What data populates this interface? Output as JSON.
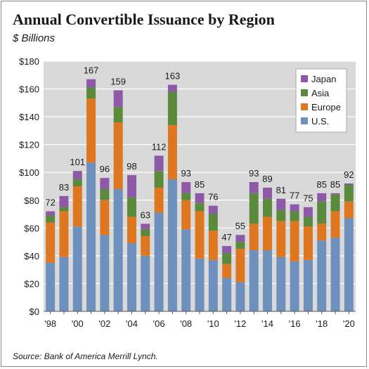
{
  "header": {
    "title": "Annual Convertible Issuance by Region",
    "subtitle": "$ Billions"
  },
  "footer": {
    "source": "Source: Bank of America Merrill Lynch."
  },
  "chart_data": {
    "type": "bar",
    "stacked": true,
    "title": "Annual Convertible Issuance by Region",
    "ylabel": "$ Billions",
    "xlabel": "",
    "ylim": [
      0,
      180
    ],
    "yticks": [
      0,
      20,
      40,
      60,
      80,
      100,
      120,
      140,
      160,
      180
    ],
    "ytick_labels": [
      "$0",
      "$20",
      "$40",
      "$60",
      "$80",
      "$100",
      "$120",
      "$140",
      "$160",
      "$180"
    ],
    "categories": [
      "1998",
      "1999",
      "2000",
      "2001",
      "2002",
      "2003",
      "2004",
      "2005",
      "2006",
      "2007",
      "2008",
      "2009",
      "2010",
      "2011",
      "2012",
      "2013",
      "2014",
      "2015",
      "2016",
      "2017",
      "2018",
      "2019",
      "2020"
    ],
    "xtick_labels": [
      "'98",
      "",
      "'00",
      "",
      "'02",
      "",
      "'04",
      "",
      "'06",
      "",
      "'08",
      "",
      "'10",
      "",
      "'12",
      "",
      "'14",
      "",
      "'16",
      "",
      "'18",
      "",
      "'20"
    ],
    "totals": [
      72,
      83,
      101,
      167,
      96,
      159,
      98,
      63,
      112,
      163,
      93,
      85,
      76,
      47,
      55,
      93,
      89,
      81,
      77,
      75,
      85,
      85,
      92
    ],
    "series": [
      {
        "name": "U.S.",
        "color": "#6d90bd",
        "values": [
          35,
          39,
          61,
          107,
          55,
          88,
          49,
          40,
          71,
          95,
          59,
          38,
          37,
          24,
          21,
          44,
          44,
          39,
          36,
          37,
          51,
          53,
          67
        ]
      },
      {
        "name": "Europe",
        "color": "#df7620",
        "values": [
          29,
          33,
          29,
          46,
          25,
          48,
          19,
          14,
          18,
          39,
          21,
          34,
          21,
          10,
          24,
          19,
          24,
          26,
          29,
          24,
          12,
          19,
          12
        ]
      },
      {
        "name": "Asia",
        "color": "#5b8a3c",
        "values": [
          5,
          3,
          5,
          8,
          8,
          11,
          14,
          5,
          12,
          24,
          5,
          6,
          12,
          8,
          5,
          22,
          13,
          8,
          7,
          7,
          16,
          12,
          12
        ]
      },
      {
        "name": "Japan",
        "color": "#8e5aa8",
        "values": [
          3,
          8,
          6,
          6,
          8,
          12,
          16,
          4,
          11,
          5,
          8,
          7,
          6,
          5,
          5,
          8,
          8,
          8,
          5,
          7,
          6,
          1,
          1
        ]
      }
    ],
    "legend": {
      "position": "top-right",
      "order": [
        "Japan",
        "Asia",
        "Europe",
        "U.S."
      ]
    },
    "grid": {
      "horizontal": true,
      "vertical": false,
      "background": "#d9d9d9",
      "gridline_color": "#ffffff"
    }
  }
}
